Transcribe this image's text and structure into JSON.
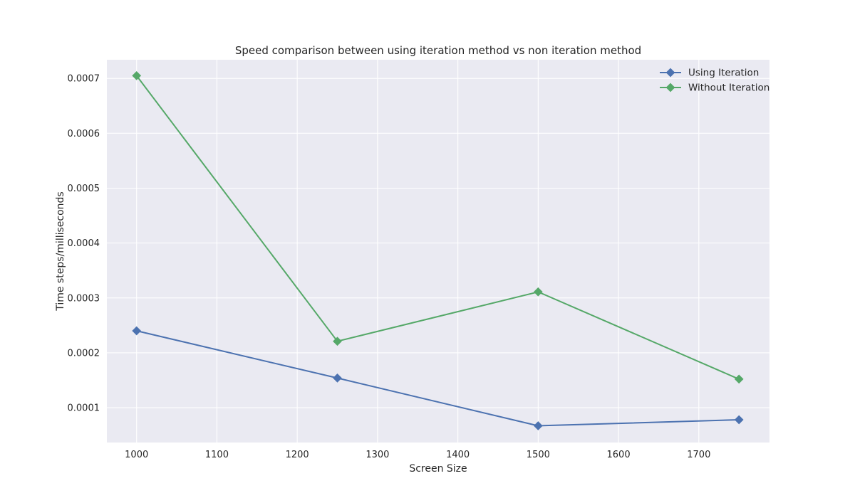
{
  "chart_data": {
    "type": "line",
    "title": "Speed comparison between using iteration method vs non iteration method",
    "xlabel": "Screen Size",
    "ylabel": "Time steps/milliseconds",
    "x": [
      1000,
      1250,
      1500,
      1750
    ],
    "xlim": [
      963,
      1788
    ],
    "ylim": [
      3.65e-05,
      0.000734
    ],
    "xticks": [
      "1000",
      "1100",
      "1200",
      "1300",
      "1400",
      "1500",
      "1600",
      "1700"
    ],
    "xtick_values": [
      1000,
      1100,
      1200,
      1300,
      1400,
      1500,
      1600,
      1700
    ],
    "yticks": [
      "0.0001",
      "0.0002",
      "0.0003",
      "0.0004",
      "0.0005",
      "0.0006",
      "0.0007"
    ],
    "ytick_values": [
      0.0001,
      0.0002,
      0.0003,
      0.0004,
      0.0005,
      0.0006,
      0.0007
    ],
    "grid": true,
    "legend": "top-right",
    "marker": "diamond",
    "series": [
      {
        "name": "Using Iteration",
        "color": "#4c72b0",
        "values": [
          0.00024,
          0.000154,
          6.7e-05,
          7.8e-05
        ]
      },
      {
        "name": "Without Iteration",
        "color": "#55a868",
        "values": [
          0.000705,
          0.000221,
          0.000311,
          0.000152
        ]
      }
    ]
  }
}
